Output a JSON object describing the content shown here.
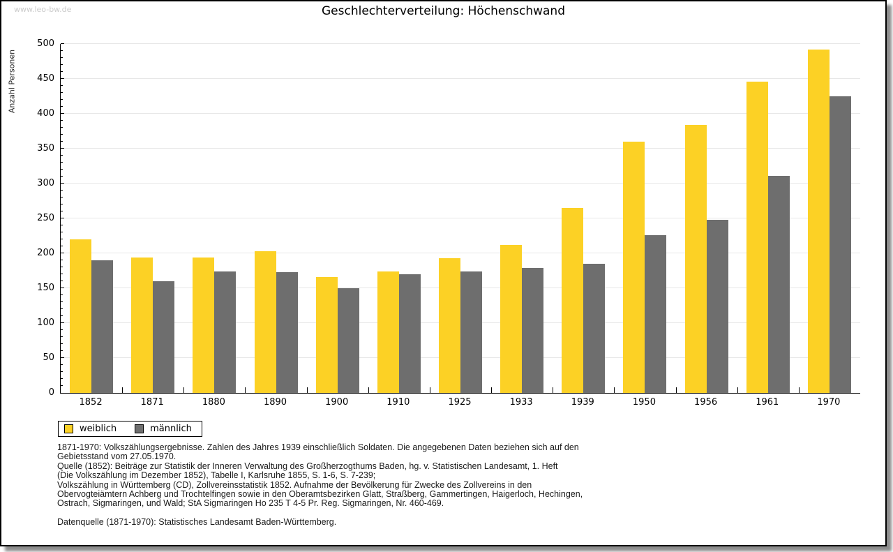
{
  "page": {
    "watermark": "www.leo-bw.de",
    "title": "Geschlechterverteilung: Höchenschwand"
  },
  "chart_data": {
    "type": "bar",
    "title": "Geschlechterverteilung: Höchenschwand",
    "xlabel": "",
    "ylabel": "Anzahl Personen",
    "ylim": [
      0,
      500
    ],
    "ytick_step": 50,
    "yminortick_step": 10,
    "grid": true,
    "legend_position": "bottom-left",
    "categories": [
      "1852",
      "1871",
      "1880",
      "1890",
      "1900",
      "1910",
      "1925",
      "1933",
      "1939",
      "1950",
      "1956",
      "1961",
      "1970"
    ],
    "series": [
      {
        "name": "weiblich",
        "color": "#FCD125",
        "values": [
          220,
          194,
          194,
          203,
          166,
          174,
          193,
          212,
          265,
          360,
          384,
          446,
          492
        ]
      },
      {
        "name": "männlich",
        "color": "#6E6E6E",
        "values": [
          190,
          160,
          174,
          173,
          150,
          170,
          174,
          179,
          185,
          226,
          248,
          311,
          425
        ]
      }
    ]
  },
  "legend": {
    "items": [
      {
        "label": "weiblich",
        "color": "#FCD125"
      },
      {
        "label": "männlich",
        "color": "#6E6E6E"
      }
    ]
  },
  "footnotes": {
    "lines": [
      "1871-1970: Volkszählungsergebnisse. Zahlen des Jahres 1939 einschließlich Soldaten. Die angegebenen Daten beziehen sich auf den",
      "Gebietsstand vom 27.05.1970.",
      "Quelle (1852): Beiträge zur Statistik der Inneren Verwaltung des Großherzogthums Baden, hg. v. Statistischen Landesamt, 1. Heft",
      "(Die Volkszählung im Dezember 1852), Tabelle I, Karlsruhe 1855, S. 1-6, S. 7-239;",
      "Volkszählung in Württemberg (CD), Zollvereinsstatistik 1852. Aufnahme der Bevölkerung für Zwecke des Zollvereins in den",
      "Obervogteiämtern Achberg und Trochtelfingen sowie in den Oberamtsbezirken Glatt, Straßberg, Gammertingen, Haigerloch, Hechingen,",
      "Ostrach, Sigmaringen, und Wald; StA Sigmaringen Ho 235 T 4-5 Pr. Reg. Sigmaringen, Nr. 460-469."
    ],
    "datasource": "Datenquelle (1871-1970): Statistisches Landesamt Baden-Württemberg."
  }
}
